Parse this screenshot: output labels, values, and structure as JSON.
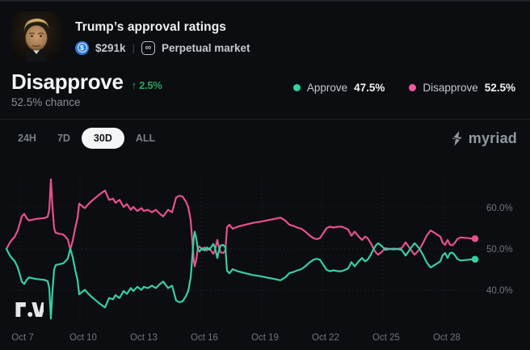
{
  "colors": {
    "accent_up": "#2aa45f",
    "approve": "#36cfa4",
    "disapprove": "#e8508d",
    "tab_active_bg": "#f3f5f6"
  },
  "icons": {
    "dollar": "$",
    "infinity": "∞",
    "up_arrow": "↑"
  },
  "header": {
    "title": "Trump’s approval ratings",
    "volume": "$291k",
    "market_type": "Perpetual market"
  },
  "outcome": {
    "name": "Disapprove",
    "change": "2.5%",
    "change_direction": "up",
    "chance": "52.5% chance"
  },
  "legend": [
    {
      "label": "Approve",
      "value": "47.5%",
      "color": "#2ed3a6"
    },
    {
      "label": "Disapprove",
      "value": "52.5%",
      "color": "#f0579c"
    }
  ],
  "toolbar": {
    "ranges": [
      {
        "label": "24H",
        "active": false
      },
      {
        "label": "7D",
        "active": false
      },
      {
        "label": "30D",
        "active": true
      },
      {
        "label": "ALL",
        "active": false
      }
    ],
    "brand": "myriad"
  },
  "chart_data": {
    "type": "line",
    "title": "Trump’s approval ratings — Approve vs Disapprove (30D)",
    "x_unit": "days since Oct 7",
    "grid": "dotted",
    "legend_position": "top-right",
    "ylim": [
      31,
      68.5
    ],
    "x_ticks": [
      {
        "day": 0,
        "label": "Oct 7"
      },
      {
        "day": 3,
        "label": "Oct 10"
      },
      {
        "day": 6,
        "label": "Oct 13"
      },
      {
        "day": 9,
        "label": "Oct 16"
      },
      {
        "day": 12,
        "label": "Oct 19"
      },
      {
        "day": 15,
        "label": "Oct 22"
      },
      {
        "day": 18,
        "label": "Oct 25"
      },
      {
        "day": 21,
        "label": "Oct 28"
      }
    ],
    "y_ticks": [
      {
        "value": 60,
        "label": "60.0%"
      },
      {
        "value": 50,
        "label": "50.0%"
      },
      {
        "value": 40,
        "label": "40.0%"
      }
    ],
    "series": [
      {
        "name": "Disapprove",
        "color": "#e8508d",
        "current": "52.5%",
        "points": [
          [
            -0.64,
            50.0
          ],
          [
            -0.48,
            51.5
          ],
          [
            -0.36,
            52.3
          ],
          [
            -0.24,
            52.9
          ],
          [
            -0.08,
            54.5
          ],
          [
            0.04,
            56.5
          ],
          [
            0.12,
            57.9
          ],
          [
            0.24,
            58.5
          ],
          [
            0.36,
            57.5
          ],
          [
            0.48,
            56.9
          ],
          [
            0.64,
            57.1
          ],
          [
            0.84,
            57.3
          ],
          [
            1.04,
            57.4
          ],
          [
            1.24,
            57.5
          ],
          [
            1.4,
            57.8
          ],
          [
            1.48,
            59.5
          ],
          [
            1.56,
            66.9
          ],
          [
            1.64,
            60.0
          ],
          [
            1.72,
            55.0
          ],
          [
            1.8,
            53.9
          ],
          [
            1.96,
            53.7
          ],
          [
            2.16,
            53.5
          ],
          [
            2.28,
            53.0
          ],
          [
            2.4,
            52.3
          ],
          [
            2.52,
            49.9
          ],
          [
            2.64,
            52.0
          ],
          [
            2.76,
            55.0
          ],
          [
            2.88,
            57.5
          ],
          [
            2.96,
            61.0
          ],
          [
            3.08,
            60.5
          ],
          [
            3.24,
            59.9
          ],
          [
            3.44,
            61.0
          ],
          [
            3.64,
            61.9
          ],
          [
            3.96,
            63.2
          ],
          [
            4.24,
            64.2
          ],
          [
            4.44,
            61.9
          ],
          [
            4.64,
            62.2
          ],
          [
            4.76,
            61.2
          ],
          [
            4.96,
            61.9
          ],
          [
            5.16,
            60.2
          ],
          [
            5.32,
            60.9
          ],
          [
            5.52,
            59.5
          ],
          [
            5.64,
            60.2
          ],
          [
            5.84,
            59.2
          ],
          [
            6.04,
            59.9
          ],
          [
            6.16,
            59.2
          ],
          [
            6.36,
            59.5
          ],
          [
            6.56,
            58.9
          ],
          [
            6.76,
            59.5
          ],
          [
            6.96,
            58.5
          ],
          [
            7.12,
            57.9
          ],
          [
            7.36,
            59.5
          ],
          [
            7.56,
            58.9
          ],
          [
            7.76,
            62.5
          ],
          [
            7.92,
            62.9
          ],
          [
            8.08,
            62.7
          ],
          [
            8.24,
            61.5
          ],
          [
            8.36,
            60.2
          ],
          [
            8.48,
            57.0
          ],
          [
            8.56,
            52.0
          ],
          [
            8.64,
            47.0
          ],
          [
            8.68,
            45.8
          ],
          [
            8.76,
            47.5
          ],
          [
            8.84,
            50.2
          ],
          [
            8.92,
            50.6
          ],
          [
            9.04,
            49.8
          ],
          [
            9.16,
            50.4
          ],
          [
            9.28,
            49.6
          ],
          [
            9.4,
            50.2
          ],
          [
            9.52,
            49.4
          ],
          [
            9.6,
            48.8
          ],
          [
            9.68,
            49.6
          ],
          [
            9.8,
            52.2
          ],
          [
            9.88,
            50.4
          ],
          [
            9.96,
            49.2
          ],
          [
            10.08,
            49.0
          ],
          [
            10.2,
            49.6
          ],
          [
            10.28,
            55.3
          ],
          [
            10.4,
            55.9
          ],
          [
            10.56,
            54.9
          ],
          [
            10.8,
            55.4
          ],
          [
            11.12,
            55.8
          ],
          [
            11.52,
            56.3
          ],
          [
            11.92,
            56.6
          ],
          [
            12.32,
            57.0
          ],
          [
            12.64,
            57.3
          ],
          [
            12.92,
            57.6
          ],
          [
            13.16,
            56.9
          ],
          [
            13.36,
            55.9
          ],
          [
            13.56,
            55.6
          ],
          [
            13.76,
            55.2
          ],
          [
            13.96,
            54.9
          ],
          [
            14.16,
            54.2
          ],
          [
            14.36,
            53.3
          ],
          [
            14.56,
            52.6
          ],
          [
            14.72,
            52.4
          ],
          [
            14.88,
            52.6
          ],
          [
            15.04,
            53.8
          ],
          [
            15.2,
            55.0
          ],
          [
            15.36,
            55.4
          ],
          [
            15.56,
            55.2
          ],
          [
            15.76,
            55.4
          ],
          [
            15.96,
            55.4
          ],
          [
            16.16,
            55.0
          ],
          [
            16.28,
            54.7
          ],
          [
            16.44,
            53.2
          ],
          [
            16.6,
            54.2
          ],
          [
            16.8,
            53.0
          ],
          [
            16.96,
            52.2
          ],
          [
            17.12,
            53.0
          ],
          [
            17.24,
            52.6
          ],
          [
            17.4,
            51.4
          ],
          [
            17.52,
            50.2
          ],
          [
            17.64,
            49.2
          ],
          [
            17.76,
            48.6
          ],
          [
            17.92,
            49.2
          ],
          [
            18.12,
            50.2
          ],
          [
            18.32,
            50.0
          ],
          [
            18.52,
            50.1
          ],
          [
            18.72,
            50.0
          ],
          [
            18.92,
            50.2
          ],
          [
            19.04,
            51.0
          ],
          [
            19.12,
            51.6
          ],
          [
            19.24,
            50.8
          ],
          [
            19.32,
            50.2
          ],
          [
            19.44,
            49.4
          ],
          [
            19.56,
            48.6
          ],
          [
            19.72,
            49.4
          ],
          [
            19.84,
            50.2
          ],
          [
            20.0,
            51.6
          ],
          [
            20.16,
            53.2
          ],
          [
            20.36,
            54.5
          ],
          [
            20.52,
            54.0
          ],
          [
            20.68,
            53.5
          ],
          [
            20.84,
            53.0
          ],
          [
            20.96,
            51.5
          ],
          [
            21.08,
            51.0
          ],
          [
            21.2,
            52.2
          ],
          [
            21.32,
            51.0
          ],
          [
            21.44,
            50.9
          ],
          [
            21.56,
            51.5
          ],
          [
            21.68,
            52.4
          ],
          [
            21.84,
            52.8
          ],
          [
            22.04,
            52.7
          ],
          [
            22.24,
            52.6
          ],
          [
            22.4,
            52.5
          ],
          [
            22.56,
            52.5
          ]
        ]
      },
      {
        "name": "Approve",
        "color": "#36cfa4",
        "current": "47.5%",
        "points": [
          [
            -0.64,
            50.0
          ],
          [
            -0.48,
            48.5
          ],
          [
            -0.36,
            47.7
          ],
          [
            -0.24,
            47.1
          ],
          [
            -0.08,
            45.5
          ],
          [
            0.04,
            43.5
          ],
          [
            0.12,
            42.1
          ],
          [
            0.24,
            41.5
          ],
          [
            0.36,
            42.5
          ],
          [
            0.48,
            43.1
          ],
          [
            0.64,
            42.9
          ],
          [
            0.84,
            42.7
          ],
          [
            1.04,
            42.6
          ],
          [
            1.24,
            42.5
          ],
          [
            1.4,
            42.2
          ],
          [
            1.48,
            40.5
          ],
          [
            1.56,
            33.1
          ],
          [
            1.64,
            40.0
          ],
          [
            1.72,
            45.0
          ],
          [
            1.8,
            46.1
          ],
          [
            1.96,
            46.3
          ],
          [
            2.16,
            46.5
          ],
          [
            2.28,
            47.0
          ],
          [
            2.4,
            47.7
          ],
          [
            2.52,
            50.1
          ],
          [
            2.64,
            48.0
          ],
          [
            2.76,
            45.0
          ],
          [
            2.88,
            42.5
          ],
          [
            2.96,
            39.0
          ],
          [
            3.08,
            39.5
          ],
          [
            3.24,
            40.1
          ],
          [
            3.44,
            39.0
          ],
          [
            3.64,
            38.1
          ],
          [
            3.96,
            36.8
          ],
          [
            4.24,
            35.8
          ],
          [
            4.44,
            38.1
          ],
          [
            4.64,
            37.8
          ],
          [
            4.76,
            38.8
          ],
          [
            4.96,
            38.1
          ],
          [
            5.16,
            39.8
          ],
          [
            5.32,
            39.1
          ],
          [
            5.52,
            40.5
          ],
          [
            5.64,
            39.8
          ],
          [
            5.84,
            40.8
          ],
          [
            6.04,
            40.1
          ],
          [
            6.16,
            40.8
          ],
          [
            6.36,
            40.5
          ],
          [
            6.56,
            41.1
          ],
          [
            6.76,
            40.5
          ],
          [
            6.96,
            41.5
          ],
          [
            7.12,
            42.1
          ],
          [
            7.36,
            40.5
          ],
          [
            7.56,
            41.1
          ],
          [
            7.76,
            37.5
          ],
          [
            7.92,
            37.1
          ],
          [
            8.08,
            37.3
          ],
          [
            8.24,
            38.5
          ],
          [
            8.36,
            39.8
          ],
          [
            8.48,
            43.0
          ],
          [
            8.56,
            48.0
          ],
          [
            8.64,
            53.0
          ],
          [
            8.68,
            54.2
          ],
          [
            8.76,
            52.5
          ],
          [
            8.84,
            49.8
          ],
          [
            8.92,
            49.4
          ],
          [
            9.04,
            50.2
          ],
          [
            9.16,
            49.6
          ],
          [
            9.28,
            50.4
          ],
          [
            9.4,
            49.8
          ],
          [
            9.52,
            50.6
          ],
          [
            9.6,
            51.2
          ],
          [
            9.68,
            50.4
          ],
          [
            9.8,
            47.8
          ],
          [
            9.88,
            49.6
          ],
          [
            9.96,
            50.8
          ],
          [
            10.08,
            51.0
          ],
          [
            10.2,
            50.4
          ],
          [
            10.28,
            44.7
          ],
          [
            10.4,
            44.1
          ],
          [
            10.56,
            45.1
          ],
          [
            10.8,
            44.6
          ],
          [
            11.12,
            44.2
          ],
          [
            11.52,
            43.7
          ],
          [
            11.92,
            43.4
          ],
          [
            12.32,
            43.0
          ],
          [
            12.64,
            42.7
          ],
          [
            12.92,
            42.4
          ],
          [
            13.16,
            43.1
          ],
          [
            13.36,
            44.1
          ],
          [
            13.56,
            44.4
          ],
          [
            13.76,
            44.8
          ],
          [
            13.96,
            45.1
          ],
          [
            14.16,
            45.8
          ],
          [
            14.36,
            46.7
          ],
          [
            14.56,
            47.4
          ],
          [
            14.72,
            47.6
          ],
          [
            14.88,
            47.4
          ],
          [
            15.04,
            46.2
          ],
          [
            15.2,
            45.0
          ],
          [
            15.36,
            44.6
          ],
          [
            15.56,
            44.8
          ],
          [
            15.76,
            44.6
          ],
          [
            15.96,
            44.6
          ],
          [
            16.16,
            45.0
          ],
          [
            16.28,
            45.3
          ],
          [
            16.44,
            46.8
          ],
          [
            16.6,
            45.8
          ],
          [
            16.8,
            47.0
          ],
          [
            16.96,
            47.8
          ],
          [
            17.12,
            47.0
          ],
          [
            17.24,
            47.4
          ],
          [
            17.4,
            48.6
          ],
          [
            17.52,
            49.8
          ],
          [
            17.64,
            50.8
          ],
          [
            17.76,
            51.4
          ],
          [
            17.92,
            50.8
          ],
          [
            18.12,
            49.8
          ],
          [
            18.32,
            50.0
          ],
          [
            18.52,
            49.9
          ],
          [
            18.72,
            50.0
          ],
          [
            18.92,
            49.8
          ],
          [
            19.04,
            49.0
          ],
          [
            19.12,
            48.4
          ],
          [
            19.24,
            49.2
          ],
          [
            19.32,
            49.8
          ],
          [
            19.44,
            50.6
          ],
          [
            19.56,
            51.4
          ],
          [
            19.72,
            50.6
          ],
          [
            19.84,
            49.8
          ],
          [
            20.0,
            48.4
          ],
          [
            20.16,
            46.8
          ],
          [
            20.36,
            45.5
          ],
          [
            20.52,
            46.0
          ],
          [
            20.68,
            46.5
          ],
          [
            20.84,
            47.0
          ],
          [
            20.96,
            48.5
          ],
          [
            21.08,
            49.0
          ],
          [
            21.2,
            47.8
          ],
          [
            21.32,
            49.0
          ],
          [
            21.44,
            49.1
          ],
          [
            21.56,
            48.5
          ],
          [
            21.68,
            47.6
          ],
          [
            21.84,
            47.2
          ],
          [
            22.04,
            47.3
          ],
          [
            22.24,
            47.4
          ],
          [
            22.4,
            47.5
          ],
          [
            22.56,
            47.5
          ]
        ]
      }
    ]
  }
}
